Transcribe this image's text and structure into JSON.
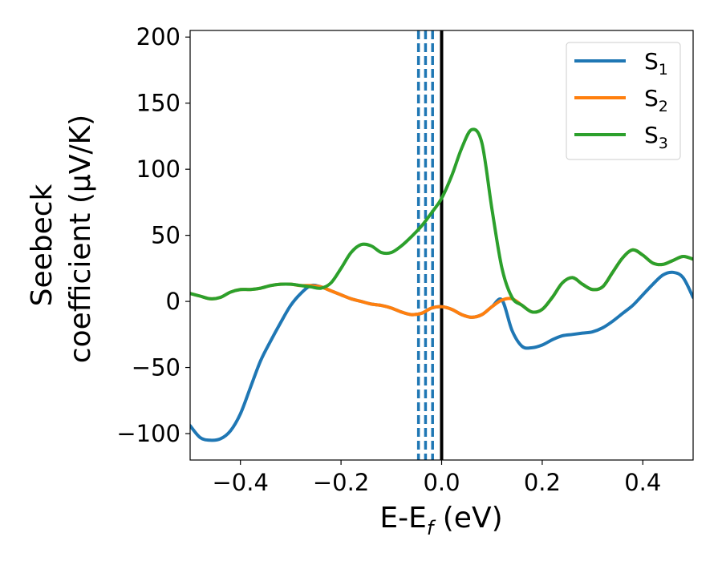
{
  "chart_data": {
    "type": "line",
    "xlabel": "E-E",
    "xlabel_sub": "f",
    "xlabel_unit": " (eV)",
    "ylabel_line1": "Seebeck",
    "ylabel_line2": "coefficient  (μV/K)",
    "xlim": [
      -0.5,
      0.5
    ],
    "ylim": [
      -120,
      205
    ],
    "xticks": [
      -0.4,
      -0.2,
      0.0,
      0.2,
      0.4
    ],
    "xtick_labels": [
      "−0.4",
      "−0.2",
      "0.0",
      "0.2",
      "0.4"
    ],
    "yticks": [
      -100,
      -50,
      0,
      50,
      100,
      150,
      200
    ],
    "ytick_labels": [
      "−100",
      "−50",
      "0",
      "50",
      "100",
      "150",
      "200"
    ],
    "grid": false,
    "legend_position": "top-right",
    "vertical_lines": [
      {
        "x": 0.0,
        "style": "solid",
        "color": "#000000"
      },
      {
        "x": -0.046,
        "style": "dashed",
        "color": "#1f77b4"
      },
      {
        "x": -0.032,
        "style": "dashed",
        "color": "#1f77b4"
      },
      {
        "x": -0.018,
        "style": "dashed",
        "color": "#1f77b4"
      }
    ],
    "series": [
      {
        "name": "S",
        "sub": "1",
        "color": "#1f77b4",
        "x": [
          -0.5,
          -0.48,
          -0.46,
          -0.44,
          -0.42,
          -0.4,
          -0.38,
          -0.36,
          -0.34,
          -0.32,
          -0.3,
          -0.28,
          -0.26,
          -0.24,
          -0.22,
          -0.2,
          -0.18,
          -0.16,
          -0.14,
          -0.12,
          -0.1,
          -0.08,
          -0.06,
          -0.04,
          -0.02,
          0.0,
          0.02,
          0.04,
          0.06,
          0.08,
          0.1,
          0.12,
          0.14,
          0.16,
          0.18,
          0.2,
          0.22,
          0.24,
          0.26,
          0.28,
          0.3,
          0.32,
          0.34,
          0.36,
          0.38,
          0.4,
          0.42,
          0.44,
          0.46,
          0.48,
          0.5
        ],
        "y": [
          -94,
          -103,
          -105,
          -104,
          -98,
          -85,
          -65,
          -45,
          -30,
          -16,
          -3,
          6,
          12,
          11,
          8,
          5,
          2,
          0,
          -2,
          -3,
          -5,
          -8,
          -10,
          -9,
          -5,
          -4,
          -6,
          -10,
          -12,
          -10,
          -4,
          1,
          -22,
          -34,
          -35,
          -33,
          -29,
          -26,
          -25,
          -24,
          -23,
          -20,
          -15,
          -9,
          -3,
          5,
          13,
          20,
          22,
          18,
          3
        ]
      },
      {
        "name": "S",
        "sub": "2",
        "color": "#ff7f0e",
        "x": [
          -0.5,
          -0.48,
          -0.46,
          -0.44,
          -0.42,
          -0.4,
          -0.38,
          -0.36,
          -0.34,
          -0.32,
          -0.3,
          -0.28,
          -0.26,
          -0.24,
          -0.22,
          -0.2,
          -0.18,
          -0.16,
          -0.14,
          -0.12,
          -0.1,
          -0.08,
          -0.06,
          -0.04,
          -0.02,
          0.0,
          0.02,
          0.04,
          0.06,
          0.08,
          0.1,
          0.12,
          0.14,
          0.16,
          0.18,
          0.2,
          0.22,
          0.24,
          0.26,
          0.28,
          0.3,
          0.32,
          0.34,
          0.36,
          0.38,
          0.4,
          0.42,
          0.44,
          0.46,
          0.48,
          0.5
        ],
        "y": [
          6,
          4,
          2,
          3,
          7,
          9,
          9,
          10,
          12,
          13,
          13,
          12,
          12,
          11,
          8,
          5,
          2,
          0,
          -2,
          -3,
          -5,
          -8,
          -10,
          -9,
          -5,
          -4,
          -6,
          -10,
          -12,
          -10,
          -4,
          1,
          2,
          -3,
          -8,
          -6,
          3,
          14,
          18,
          13,
          9,
          11,
          22,
          33,
          39,
          35,
          29,
          28,
          31,
          34,
          32
        ]
      },
      {
        "name": "S",
        "sub": "3",
        "color": "#2ca02c",
        "x": [
          -0.5,
          -0.48,
          -0.46,
          -0.44,
          -0.42,
          -0.4,
          -0.38,
          -0.36,
          -0.34,
          -0.32,
          -0.3,
          -0.28,
          -0.26,
          -0.24,
          -0.22,
          -0.2,
          -0.18,
          -0.16,
          -0.14,
          -0.12,
          -0.1,
          -0.08,
          -0.06,
          -0.04,
          -0.02,
          0.0,
          0.02,
          0.04,
          0.06,
          0.08,
          0.1,
          0.12,
          0.14,
          0.16,
          0.18,
          0.2,
          0.22,
          0.24,
          0.26,
          0.28,
          0.3,
          0.32,
          0.34,
          0.36,
          0.38,
          0.4,
          0.42,
          0.44,
          0.46,
          0.48,
          0.5
        ],
        "y": [
          6,
          4,
          2,
          3,
          7,
          9,
          9,
          10,
          12,
          13,
          13,
          12,
          11,
          10,
          14,
          25,
          37,
          43,
          42,
          37,
          37,
          42,
          49,
          57,
          67,
          78,
          95,
          116,
          130,
          120,
          70,
          25,
          3,
          -3,
          -8,
          -6,
          3,
          14,
          18,
          13,
          9,
          11,
          22,
          33,
          39,
          35,
          29,
          28,
          31,
          34,
          32
        ]
      }
    ]
  }
}
